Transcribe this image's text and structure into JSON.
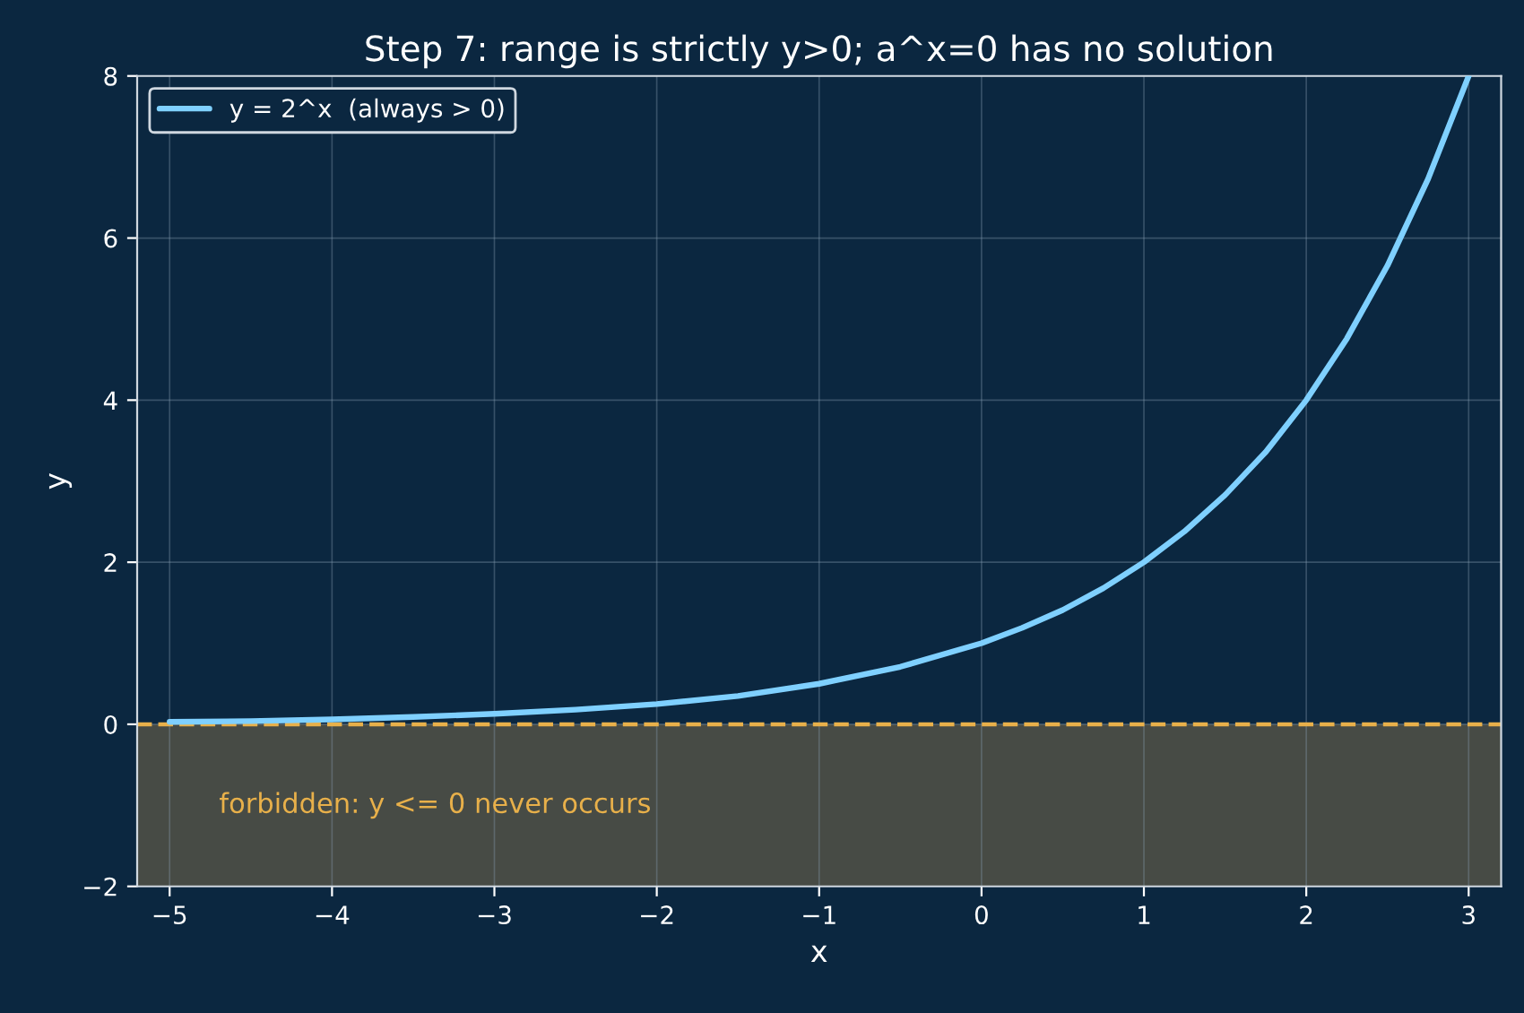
{
  "chart_data": {
    "type": "line",
    "title": "Step 7: range is strictly y>0; a^x=0 has no solution",
    "xlabel": "x",
    "ylabel": "y",
    "x": [
      -5,
      -4.5,
      -4,
      -3.5,
      -3,
      -2.5,
      -2,
      -1.5,
      -1,
      -0.5,
      0,
      0.25,
      0.5,
      0.75,
      1,
      1.25,
      1.5,
      1.75,
      2,
      2.25,
      2.5,
      2.75,
      3
    ],
    "series": [
      {
        "name": "y = 2^x  (always > 0)",
        "color": "#7fd0ff",
        "values": [
          0.03,
          0.04,
          0.06,
          0.09,
          0.13,
          0.18,
          0.25,
          0.35,
          0.5,
          0.71,
          1,
          1.19,
          1.41,
          1.68,
          2,
          2.38,
          2.83,
          3.36,
          4,
          4.76,
          5.66,
          6.73,
          8
        ]
      }
    ],
    "xlim": [
      -5.2,
      3.2
    ],
    "ylim": [
      -2,
      8
    ],
    "xticks": [
      -5,
      -4,
      -3,
      -2,
      -1,
      0,
      1,
      2,
      3
    ],
    "yticks": [
      -2,
      0,
      2,
      4,
      6,
      8
    ],
    "ref_lines": [
      {
        "axis": "y",
        "value": 0,
        "color": "#e8b04a",
        "line_style": "dashed"
      }
    ],
    "bands": [
      {
        "axis": "y",
        "from": -2,
        "to": 0,
        "color": "#474b45"
      }
    ],
    "annotations": [
      "forbidden: y <= 0 never occurs"
    ],
    "grid": true,
    "legend": "top left",
    "marker": "none",
    "line_style": "solid"
  }
}
